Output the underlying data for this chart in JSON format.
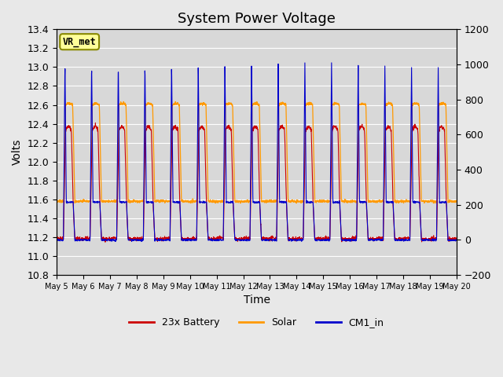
{
  "title": "System Power Voltage",
  "xlabel": "Time",
  "ylabel": "Volts",
  "ylim_left": [
    10.8,
    13.4
  ],
  "ylim_right": [
    -200,
    1200
  ],
  "yticks_left": [
    10.8,
    11.0,
    11.2,
    11.4,
    11.6,
    11.8,
    12.0,
    12.2,
    12.4,
    12.6,
    12.8,
    13.0,
    13.2,
    13.4
  ],
  "yticks_right": [
    -200,
    0,
    200,
    400,
    600,
    800,
    1000,
    1200
  ],
  "xtick_labels": [
    "May 5",
    "May 6",
    "May 7",
    "May 8",
    "May 9",
    "May 10",
    "May 11",
    "May 12",
    "May 13",
    "May 14",
    "May 15",
    "May 16",
    "May 17",
    "May 18",
    "May 19",
    "May 20"
  ],
  "n_days": 15,
  "fig_bg_color": "#e8e8e8",
  "plot_bg_color": "#d8d8d8",
  "grid_color": "#ffffff",
  "battery_color": "#cc0000",
  "solar_color": "#ff9900",
  "cm1_color": "#0000cc",
  "legend_labels": [
    "23x Battery",
    "Solar",
    "CM1_in"
  ],
  "vr_met_label": "VR_met",
  "vr_met_box_color": "#ffff99",
  "vr_met_border_color": "#888800",
  "title_fontsize": 13,
  "axis_fontsize": 10,
  "tick_fontsize": 9
}
